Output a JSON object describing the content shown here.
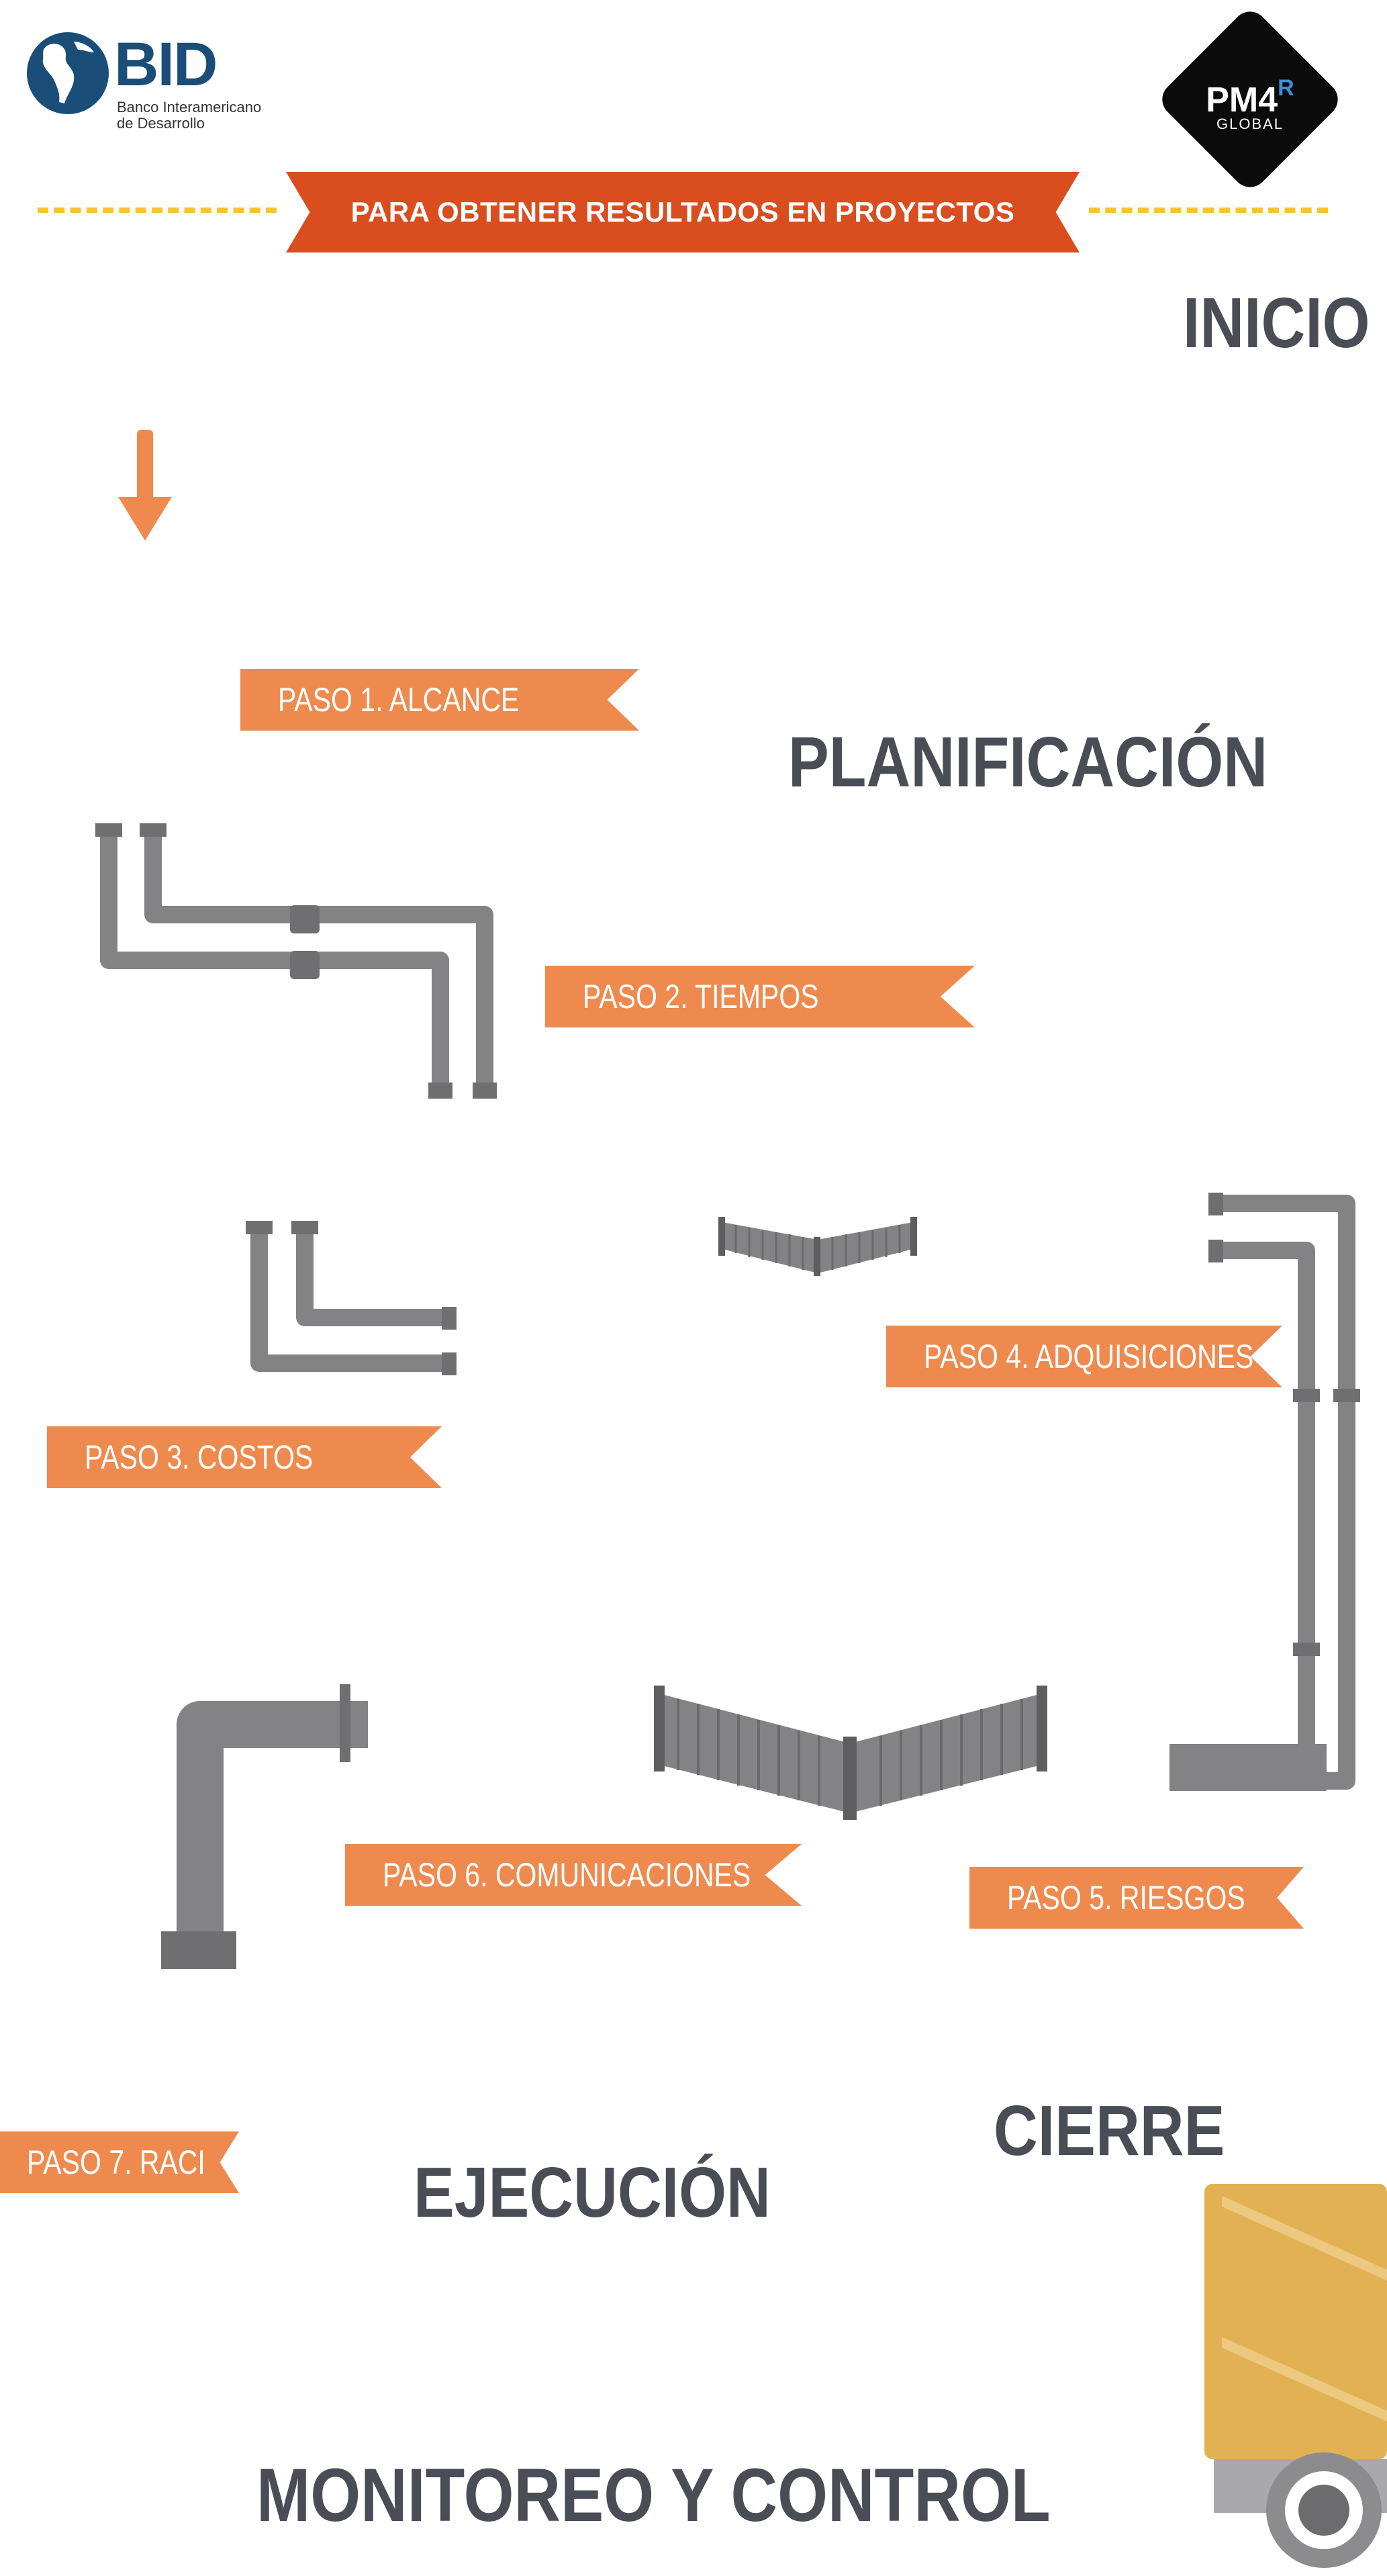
{
  "bid_logo": {
    "wordmark": "BID",
    "subtitle_line1": "Banco Interamericano",
    "subtitle_line2": "de Desarrollo"
  },
  "pm4r_logo": {
    "main": "PM4",
    "superscript": "R",
    "sub": "GLOBAL"
  },
  "banner": {
    "title": "PARA OBTENER RESULTADOS EN PROYECTOS"
  },
  "phases": {
    "inicio": "INICIO",
    "planificacion": "PLANIFICACIÓN",
    "cierre": "CIERRE",
    "ejecucion": "EJECUCIÓN",
    "monitoreo": "MONITOREO Y CONTROL"
  },
  "steps": [
    {
      "label": "PASO 1. ALCANCE"
    },
    {
      "label": "PASO 2. TIEMPOS"
    },
    {
      "label": "PASO 3. COSTOS"
    },
    {
      "label": "PASO 4. ADQUISICIONES"
    },
    {
      "label": "PASO 5. RIESGOS"
    },
    {
      "label": "PASO 6. COMUNICACIONES"
    },
    {
      "label": "PASO 7. RACI"
    }
  ],
  "colors": {
    "banner": "#d94d1f",
    "ribbon": "#ee8a4e",
    "heading": "#4a4d56",
    "pipe": "#838385",
    "pipe_dark": "#5e5e60",
    "dashes": "#f4c431",
    "truck": "#e2b154"
  },
  "icons": [
    "down-arrow-icon",
    "globe-icon",
    "truck-icon"
  ]
}
